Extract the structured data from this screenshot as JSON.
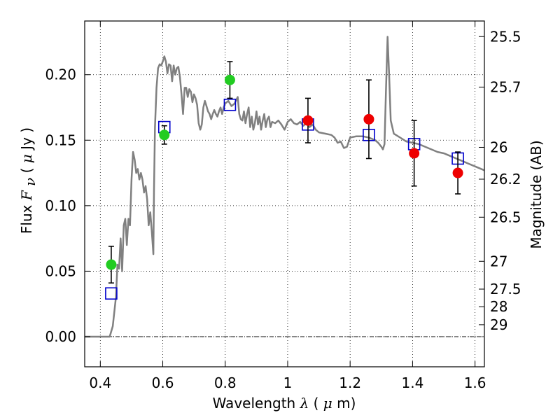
{
  "chart_data": {
    "type": "scatter",
    "xlabel": {
      "prefix": "Wavelength  ",
      "symbol": "λ",
      "unit": " (μm)",
      "unit_symbol": "μ",
      "unit_rest": "m)"
    },
    "ylabel": {
      "prefix": "Flux  ",
      "symbol": "F",
      "subscript": "ν",
      "unit_open": "  ( ",
      "unit_symbol": "μ",
      "unit_rest": "Jy )"
    },
    "y2label": "Magnitude (AB)",
    "xlim": [
      0.35,
      1.63
    ],
    "ylim": [
      -0.023,
      0.241
    ],
    "grid": true,
    "x_ticks": [
      0.4,
      0.6,
      0.8,
      1.0,
      1.2,
      1.4,
      1.6
    ],
    "x_tick_labels": [
      "0.4",
      "0.6",
      "0.8",
      "1",
      "1.2",
      "1.4",
      "1.6"
    ],
    "y_ticks": [
      0.0,
      0.05,
      0.1,
      0.15,
      0.2
    ],
    "y_tick_labels": [
      "0.00",
      "0.05",
      "0.10",
      "0.15",
      "0.20"
    ],
    "y2_ticks": [
      {
        "label": "25.5",
        "value": 25.5
      },
      {
        "label": "25.7",
        "value": 25.7
      },
      {
        "label": "26",
        "value": 26.0
      },
      {
        "label": "26.2",
        "value": 26.2
      },
      {
        "label": "26.5",
        "value": 26.5
      },
      {
        "label": "27",
        "value": 27.0
      },
      {
        "label": "27.5",
        "value": 27.5
      },
      {
        "label": "28",
        "value": 28.0
      },
      {
        "label": "29",
        "value": 29.0
      }
    ],
    "colors": {
      "model_line": "#808080",
      "model_points": "#0000cc",
      "optical_obs": "#22cc22",
      "nir_obs": "#ee0000",
      "errorbar": "#000000",
      "zero_line": "#000000"
    },
    "series": [
      {
        "kind": "line",
        "points": [
          [
            0.35,
            0.0
          ],
          [
            0.43,
            0.0
          ],
          [
            0.44,
            0.008
          ],
          [
            0.45,
            0.03
          ],
          [
            0.455,
            0.055
          ],
          [
            0.46,
            0.052
          ],
          [
            0.465,
            0.075
          ],
          [
            0.47,
            0.05
          ],
          [
            0.475,
            0.085
          ],
          [
            0.48,
            0.09
          ],
          [
            0.485,
            0.07
          ],
          [
            0.49,
            0.09
          ],
          [
            0.495,
            0.085
          ],
          [
            0.5,
            0.12
          ],
          [
            0.505,
            0.141
          ],
          [
            0.51,
            0.135
          ],
          [
            0.515,
            0.125
          ],
          [
            0.52,
            0.128
          ],
          [
            0.525,
            0.12
          ],
          [
            0.53,
            0.125
          ],
          [
            0.535,
            0.12
          ],
          [
            0.54,
            0.11
          ],
          [
            0.545,
            0.115
          ],
          [
            0.55,
            0.105
          ],
          [
            0.555,
            0.085
          ],
          [
            0.56,
            0.095
          ],
          [
            0.565,
            0.08
          ],
          [
            0.57,
            0.063
          ],
          [
            0.572,
            0.112
          ],
          [
            0.575,
            0.16
          ],
          [
            0.58,
            0.19
          ],
          [
            0.585,
            0.205
          ],
          [
            0.59,
            0.208
          ],
          [
            0.595,
            0.207
          ],
          [
            0.6,
            0.21
          ],
          [
            0.605,
            0.214
          ],
          [
            0.61,
            0.21
          ],
          [
            0.615,
            0.201
          ],
          [
            0.62,
            0.208
          ],
          [
            0.625,
            0.207
          ],
          [
            0.63,
            0.195
          ],
          [
            0.635,
            0.207
          ],
          [
            0.64,
            0.2
          ],
          [
            0.645,
            0.205
          ],
          [
            0.65,
            0.206
          ],
          [
            0.655,
            0.198
          ],
          [
            0.66,
            0.185
          ],
          [
            0.665,
            0.17
          ],
          [
            0.67,
            0.19
          ],
          [
            0.675,
            0.19
          ],
          [
            0.68,
            0.183
          ],
          [
            0.685,
            0.189
          ],
          [
            0.69,
            0.187
          ],
          [
            0.695,
            0.179
          ],
          [
            0.7,
            0.185
          ],
          [
            0.705,
            0.182
          ],
          [
            0.71,
            0.177
          ],
          [
            0.715,
            0.163
          ],
          [
            0.72,
            0.158
          ],
          [
            0.725,
            0.162
          ],
          [
            0.73,
            0.175
          ],
          [
            0.735,
            0.18
          ],
          [
            0.74,
            0.176
          ],
          [
            0.745,
            0.172
          ],
          [
            0.75,
            0.17
          ],
          [
            0.755,
            0.166
          ],
          [
            0.76,
            0.17
          ],
          [
            0.765,
            0.173
          ],
          [
            0.77,
            0.17
          ],
          [
            0.775,
            0.168
          ],
          [
            0.78,
            0.172
          ],
          [
            0.785,
            0.175
          ],
          [
            0.79,
            0.17
          ],
          [
            0.795,
            0.175
          ],
          [
            0.8,
            0.178
          ],
          [
            0.81,
            0.18
          ],
          [
            0.82,
            0.176
          ],
          [
            0.83,
            0.178
          ],
          [
            0.84,
            0.183
          ],
          [
            0.845,
            0.17
          ],
          [
            0.85,
            0.166
          ],
          [
            0.855,
            0.165
          ],
          [
            0.86,
            0.172
          ],
          [
            0.865,
            0.163
          ],
          [
            0.87,
            0.17
          ],
          [
            0.875,
            0.175
          ],
          [
            0.88,
            0.16
          ],
          [
            0.885,
            0.168
          ],
          [
            0.89,
            0.158
          ],
          [
            0.895,
            0.163
          ],
          [
            0.9,
            0.172
          ],
          [
            0.905,
            0.162
          ],
          [
            0.91,
            0.168
          ],
          [
            0.915,
            0.158
          ],
          [
            0.92,
            0.165
          ],
          [
            0.925,
            0.17
          ],
          [
            0.93,
            0.16
          ],
          [
            0.935,
            0.166
          ],
          [
            0.94,
            0.168
          ],
          [
            0.945,
            0.16
          ],
          [
            0.95,
            0.164
          ],
          [
            0.96,
            0.163
          ],
          [
            0.97,
            0.165
          ],
          [
            0.98,
            0.162
          ],
          [
            0.99,
            0.158
          ],
          [
            1.0,
            0.164
          ],
          [
            1.01,
            0.166
          ],
          [
            1.02,
            0.163
          ],
          [
            1.03,
            0.162
          ],
          [
            1.04,
            0.164
          ],
          [
            1.05,
            0.161
          ],
          [
            1.06,
            0.163
          ],
          [
            1.07,
            0.16
          ],
          [
            1.08,
            0.162
          ],
          [
            1.09,
            0.158
          ],
          [
            1.1,
            0.156
          ],
          [
            1.12,
            0.155
          ],
          [
            1.14,
            0.154
          ],
          [
            1.15,
            0.152
          ],
          [
            1.16,
            0.148
          ],
          [
            1.17,
            0.149
          ],
          [
            1.18,
            0.144
          ],
          [
            1.19,
            0.145
          ],
          [
            1.2,
            0.152
          ],
          [
            1.22,
            0.153
          ],
          [
            1.24,
            0.153
          ],
          [
            1.26,
            0.152
          ],
          [
            1.28,
            0.15
          ],
          [
            1.29,
            0.148
          ],
          [
            1.3,
            0.145
          ],
          [
            1.305,
            0.143
          ],
          [
            1.31,
            0.147
          ],
          [
            1.315,
            0.19
          ],
          [
            1.32,
            0.229
          ],
          [
            1.325,
            0.2
          ],
          [
            1.33,
            0.165
          ],
          [
            1.34,
            0.155
          ],
          [
            1.36,
            0.152
          ],
          [
            1.38,
            0.149
          ],
          [
            1.4,
            0.148
          ],
          [
            1.42,
            0.147
          ],
          [
            1.44,
            0.145
          ],
          [
            1.46,
            0.143
          ],
          [
            1.48,
            0.141
          ],
          [
            1.5,
            0.14
          ],
          [
            1.52,
            0.138
          ],
          [
            1.54,
            0.136
          ],
          [
            1.56,
            0.134
          ],
          [
            1.58,
            0.132
          ],
          [
            1.6,
            0.13
          ],
          [
            1.63,
            0.127
          ]
        ]
      },
      {
        "kind": "squares",
        "points": [
          {
            "x": 0.435,
            "y": 0.033
          },
          {
            "x": 0.605,
            "y": 0.16
          },
          {
            "x": 0.815,
            "y": 0.177
          },
          {
            "x": 1.065,
            "y": 0.162
          },
          {
            "x": 1.26,
            "y": 0.154
          },
          {
            "x": 1.405,
            "y": 0.147
          },
          {
            "x": 1.545,
            "y": 0.136
          }
        ]
      },
      {
        "kind": "circles",
        "color_key": "optical_obs",
        "points": [
          {
            "x": 0.435,
            "y": 0.055,
            "err": 0.014
          },
          {
            "x": 0.605,
            "y": 0.154,
            "err": 0.007
          },
          {
            "x": 0.815,
            "y": 0.196,
            "err": 0.014
          }
        ]
      },
      {
        "kind": "circles",
        "color_key": "nir_obs",
        "points": [
          {
            "x": 1.065,
            "y": 0.165,
            "err": 0.017
          },
          {
            "x": 1.26,
            "y": 0.166,
            "err": 0.03
          },
          {
            "x": 1.405,
            "y": 0.14,
            "err": 0.025
          },
          {
            "x": 1.545,
            "y": 0.125,
            "err": 0.016
          }
        ]
      }
    ]
  }
}
